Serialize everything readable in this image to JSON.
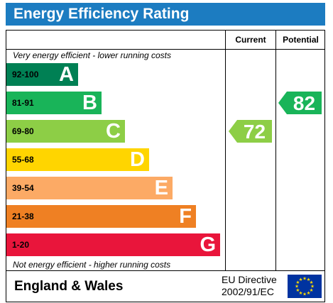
{
  "title": "Energy Efficiency Rating",
  "columns": {
    "current": "Current",
    "potential": "Potential"
  },
  "captions": {
    "top": "Very energy efficient - lower running costs",
    "bottom": "Not energy efficient - higher running costs"
  },
  "footer": {
    "country": "England & Wales",
    "directive_line1": "EU Directive",
    "directive_line2": "2002/91/EC"
  },
  "colors": {
    "header": "#1c7cc1",
    "flag": "#0033a0",
    "stars": "#ffdd00"
  },
  "chart_data": {
    "type": "bar",
    "bands": [
      {
        "range": "92-100",
        "letter": "A",
        "color": "#008054",
        "range_color": "#000000"
      },
      {
        "range": "81-91",
        "letter": "B",
        "color": "#19b459",
        "range_color": "#000000"
      },
      {
        "range": "69-80",
        "letter": "C",
        "color": "#8dce46",
        "range_color": "#000000"
      },
      {
        "range": "55-68",
        "letter": "D",
        "color": "#ffd500",
        "range_color": "#000000"
      },
      {
        "range": "39-54",
        "letter": "E",
        "color": "#fcaa65",
        "range_color": "#000000"
      },
      {
        "range": "21-38",
        "letter": "F",
        "color": "#ef8023",
        "range_color": "#000000"
      },
      {
        "range": "1-20",
        "letter": "G",
        "color": "#e9153b",
        "range_color": "#000000"
      }
    ],
    "current": {
      "value": 72,
      "band": "C",
      "color": "#8dce46"
    },
    "potential": {
      "value": 82,
      "band": "B",
      "color": "#19b459"
    }
  }
}
